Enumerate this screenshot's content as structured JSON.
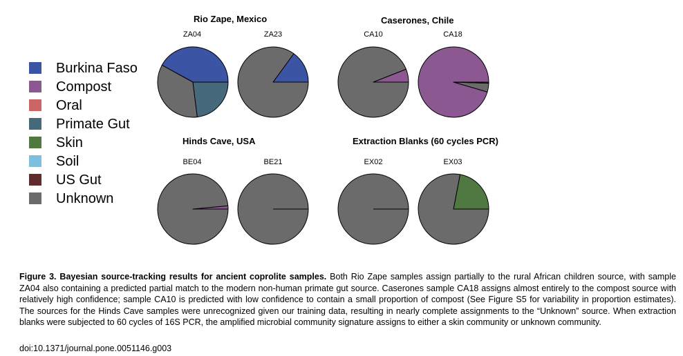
{
  "legend": [
    {
      "label": "Burkina Faso",
      "color": "#3B54A3"
    },
    {
      "label": "Compost",
      "color": "#8B5892"
    },
    {
      "label": "Oral",
      "color": "#CC6666"
    },
    {
      "label": "Primate Gut",
      "color": "#46697B"
    },
    {
      "label": "Skin",
      "color": "#4F7940"
    },
    {
      "label": "Soil",
      "color": "#7CBFDE"
    },
    {
      "label": "US Gut",
      "color": "#5E2C2C"
    },
    {
      "label": "Unknown",
      "color": "#6B6B6B"
    }
  ],
  "groups": {
    "rio_zape": "Rio Zape, Mexico",
    "caserones": "Caserones, Chile",
    "hinds_cave": "Hinds Cave, USA",
    "blanks": "Extraction Blanks (60 cycles PCR)"
  },
  "chart_data": [
    {
      "type": "pie",
      "sample": "ZA04",
      "slices": [
        {
          "source": "Burkina Faso",
          "value": 0.42
        },
        {
          "source": "Unknown",
          "value": 0.35
        },
        {
          "source": "Primate Gut",
          "value": 0.23
        }
      ]
    },
    {
      "type": "pie",
      "sample": "ZA23",
      "slices": [
        {
          "source": "Burkina Faso",
          "value": 0.15
        },
        {
          "source": "Unknown",
          "value": 0.85
        }
      ]
    },
    {
      "type": "pie",
      "sample": "CA10",
      "slices": [
        {
          "source": "Compost",
          "value": 0.06
        },
        {
          "source": "Unknown",
          "value": 0.94
        }
      ]
    },
    {
      "type": "pie",
      "sample": "CA18",
      "slices": [
        {
          "source": "Compost",
          "value": 0.955
        },
        {
          "source": "Unknown",
          "value": 0.04
        },
        {
          "source": "US Gut",
          "value": 0.005
        }
      ]
    },
    {
      "type": "pie",
      "sample": "BE04",
      "slices": [
        {
          "source": "Compost",
          "value": 0.015
        },
        {
          "source": "Unknown",
          "value": 0.985
        }
      ]
    },
    {
      "type": "pie",
      "sample": "BE21",
      "slices": [
        {
          "source": "Unknown",
          "value": 1.0
        }
      ]
    },
    {
      "type": "pie",
      "sample": "EX02",
      "slices": [
        {
          "source": "Unknown",
          "value": 1.0
        }
      ]
    },
    {
      "type": "pie",
      "sample": "EX03",
      "slices": [
        {
          "source": "Skin",
          "value": 0.22
        },
        {
          "source": "Unknown",
          "value": 0.78
        }
      ]
    }
  ],
  "caption": {
    "title": "Figure 3. Bayesian source-tracking results for ancient coprolite samples.",
    "body": " Both Rio Zape samples assign partially to the rural African children source, with sample ZA04 also containing a predicted partial match to the modern non-human primate gut source. Caserones sample CA18 assigns almost entirely to the compost source with relatively high confidence; sample CA10 is predicted with low confidence to contain a small proportion of compost (See Figure S5 for variability in proportion estimates). The sources for the Hinds Cave samples were unrecognized given our training data, resulting in nearly complete assignments to the “Unknown” source. When extraction blanks were subjected to 60 cycles of 16S PCR, the amplified microbial community signature assigns to either a skin community or unknown community.",
    "doi": "doi:10.1371/journal.pone.0051146.g003"
  }
}
